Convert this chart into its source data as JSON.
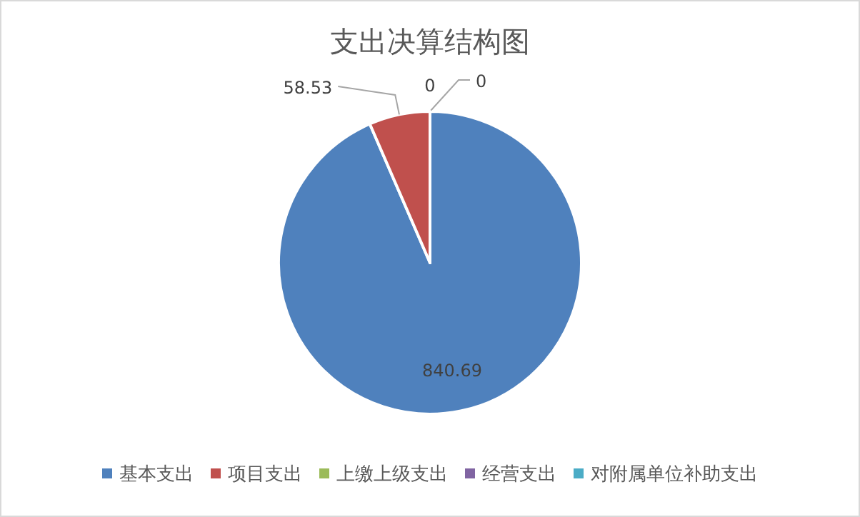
{
  "chart_data": {
    "type": "pie",
    "title": "支出决算结构图",
    "categories": [
      "基本支出",
      "项目支出",
      "上缴上级支出",
      "经营支出",
      "对附属单位补助支出"
    ],
    "values": [
      840.69,
      58.53,
      0,
      0,
      0
    ],
    "value_labels": [
      "840.69",
      "58.53",
      "0",
      "0",
      null
    ],
    "colors": [
      "#4f81bd",
      "#c0504d",
      "#9bbb59",
      "#8064a2",
      "#4bacc6"
    ],
    "legend": "bottom"
  }
}
